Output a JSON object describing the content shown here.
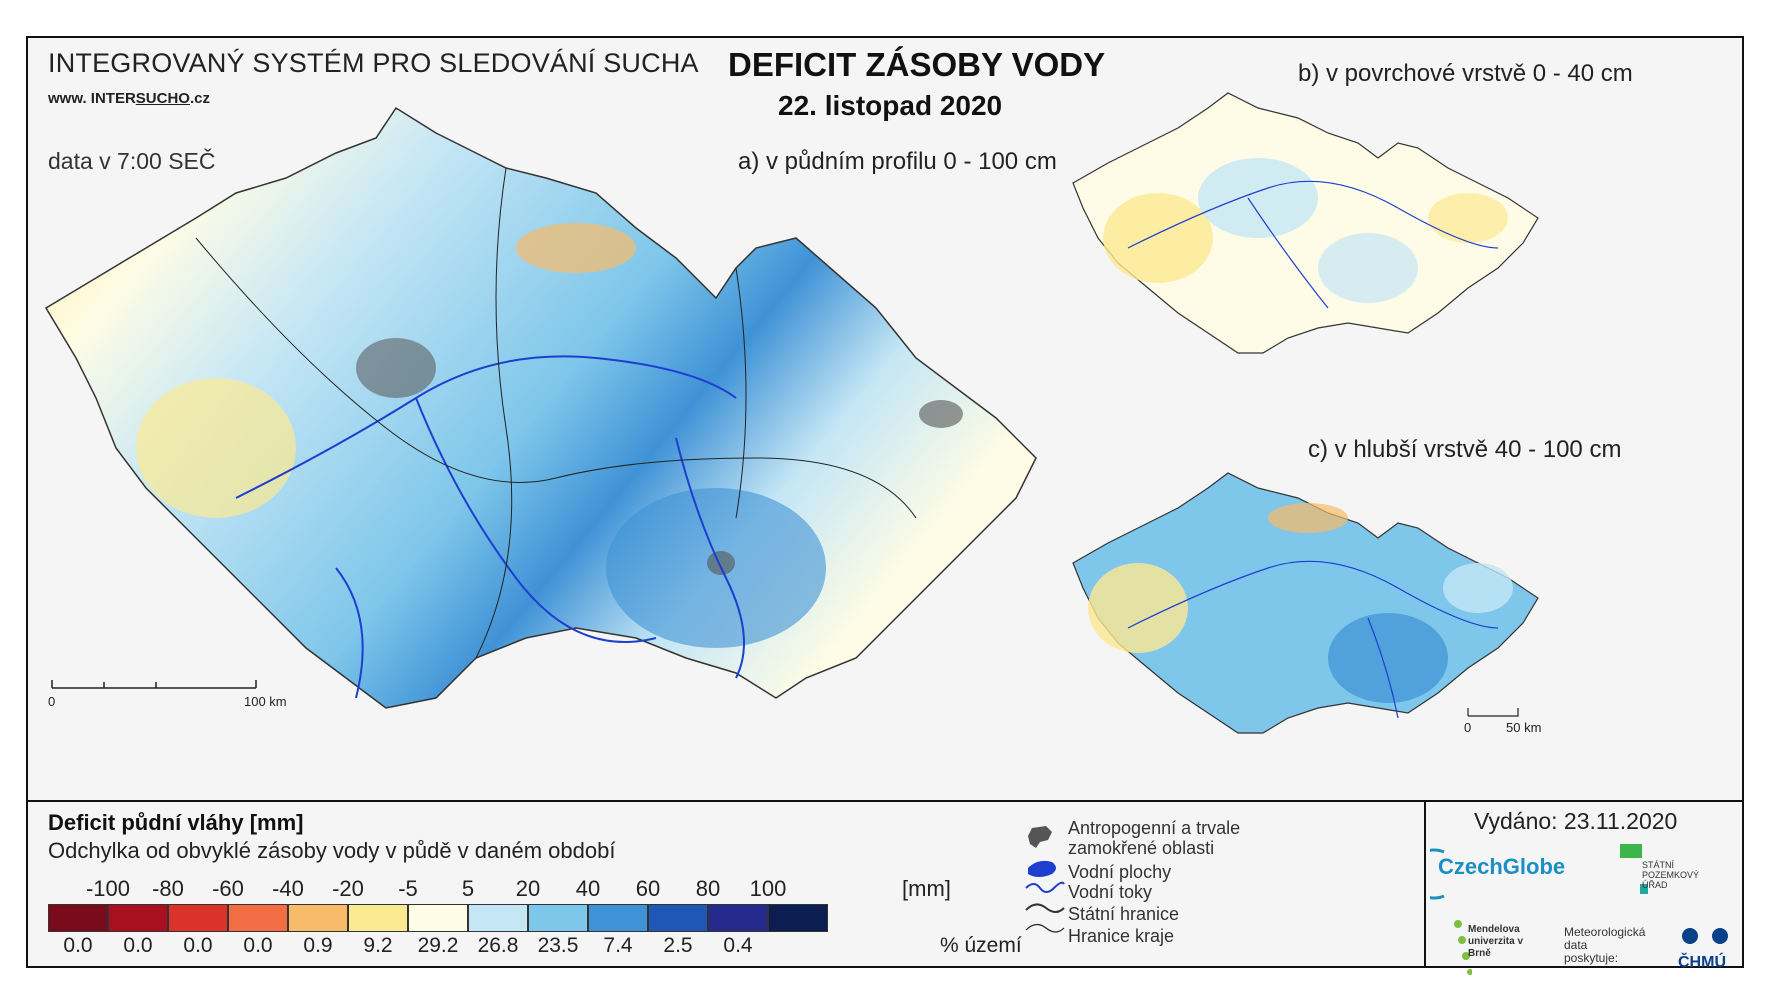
{
  "header": {
    "system_title": "INTEGROVANÝ SYSTÉM PRO SLEDOVÁNÍ SUCHA",
    "site_prefix": "www. INTER",
    "site_underlined": "SUCHO",
    "site_suffix": ".cz",
    "data_time": "data v 7:00 SEČ",
    "main_title": "DEFICIT ZÁSOBY VODY",
    "main_date": "22. listopad 2020"
  },
  "maps": {
    "a_label": "a) v půdním profilu 0 - 100 cm",
    "b_label": "b) v povrchové vrstvě 0 - 40 cm",
    "c_label": "c) v hlubší vrstvě 40 - 100 cm",
    "scale_main": {
      "zero": "0",
      "end": "100 km"
    },
    "scale_small": {
      "zero": "0",
      "end": "50 km"
    }
  },
  "legend": {
    "title": "Deficit půdní vláhy  [mm]",
    "subtitle": "Odchylka od obvyklé zásoby vody v půdě v daném období",
    "unit": "[mm]",
    "percent_unit": "% území",
    "ticks": [
      "-100",
      "-80",
      "-60",
      "-40",
      "-20",
      "-5",
      "5",
      "20",
      "40",
      "60",
      "80",
      "100"
    ],
    "classes": [
      {
        "color": "#7a0b1c",
        "percent": "0.0"
      },
      {
        "color": "#a8101f",
        "percent": "0.0"
      },
      {
        "color": "#d9332c",
        "percent": "0.0"
      },
      {
        "color": "#f26d43",
        "percent": "0.0"
      },
      {
        "color": "#f8bb6a",
        "percent": "0.9"
      },
      {
        "color": "#fce992",
        "percent": "9.2"
      },
      {
        "color": "#fefce6",
        "percent": "29.2"
      },
      {
        "color": "#c4e6f5",
        "percent": "26.8"
      },
      {
        "color": "#7ec6ea",
        "percent": "23.5"
      },
      {
        "color": "#3f92d6",
        "percent": "7.4"
      },
      {
        "color": "#1f57b6",
        "percent": "2.5"
      },
      {
        "color": "#252a8c",
        "percent": "0.4"
      },
      {
        "color": "#0c1d52",
        "percent": ""
      }
    ]
  },
  "key": {
    "anthropogenic": "Antropogenní a trvale",
    "anthropogenic_2": "zamokřené oblasti",
    "water_bodies": "Vodní plochy",
    "water_courses": "Vodní toky",
    "state_border": "Státní hranice",
    "region_border": "Hranice kraje"
  },
  "issue": {
    "issued": "Vydáno: 23.11.2020",
    "czechglobe": "CzechGlobe",
    "spu": "STÁTNÍ POZEMKOVÝ ÚŘAD",
    "mendel": "Mendelova univerzita v Brně",
    "meteo": "Meteorologická data poskytuje:",
    "chmu": "ČHMÚ"
  }
}
